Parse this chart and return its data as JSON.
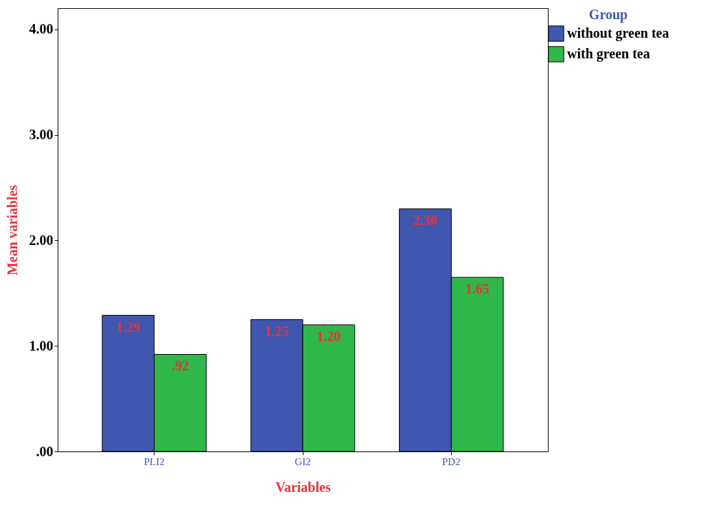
{
  "chart_data": {
    "type": "bar",
    "categories": [
      "PLI2",
      "GI2",
      "PD2"
    ],
    "series": [
      {
        "name": "without green tea",
        "color": "#3f57ae",
        "values": [
          1.29,
          1.25,
          2.3
        ],
        "value_labels": [
          "1.29",
          "1.25",
          "2.30"
        ]
      },
      {
        "name": "with green tea",
        "color": "#2fb84a",
        "values": [
          0.92,
          1.2,
          1.65
        ],
        "value_labels": [
          ".92",
          "1.20",
          "1.65"
        ]
      }
    ],
    "xlabel": "Variables",
    "ylabel": "Mean variables",
    "legend_title": "Group",
    "legend": "top right",
    "ylim": [
      0,
      4.2
    ],
    "yticks": [
      {
        "value": 0,
        "label": ".00"
      },
      {
        "value": 1,
        "label": "1.00"
      },
      {
        "value": 2,
        "label": "2.00"
      },
      {
        "value": 3,
        "label": "3.00"
      },
      {
        "value": 4,
        "label": "4.00"
      }
    ]
  }
}
